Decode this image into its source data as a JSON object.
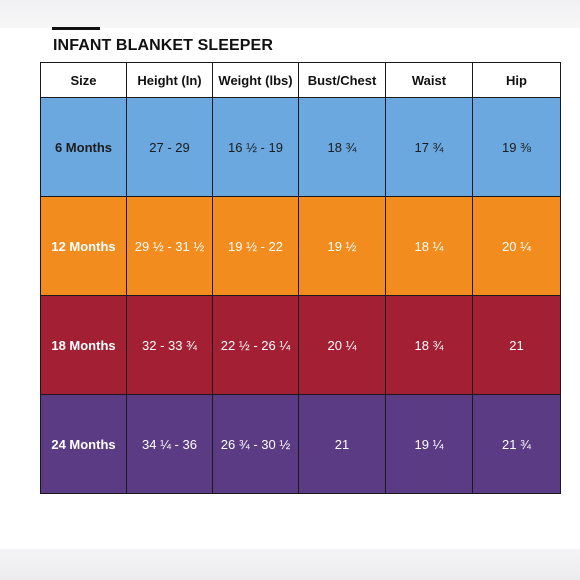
{
  "title": "INFANT BLANKET SLEEPER",
  "headers": [
    "Size",
    "Height (In)",
    "Weight (lbs)",
    "Bust/Chest",
    "Waist",
    "Hip"
  ],
  "rows": [
    {
      "size": "6 Months",
      "height": "27 - 29",
      "weight": "16 ½ - 19",
      "bust": "18 ¾",
      "waist": "17 ¾",
      "hip": "19 ⅜",
      "bg": "#6aa8df",
      "text_color": "#1c1c1c"
    },
    {
      "size": "12 Months",
      "height": "29 ½ - 31 ½",
      "weight": "19 ½ - 22",
      "bust": "19 ½",
      "waist": "18 ¼",
      "hip": "20 ¼",
      "bg": "#f28c1e",
      "text_color": "#ffffff"
    },
    {
      "size": "18 Months",
      "height": "32 - 33 ¾",
      "weight": "22 ½ - 26 ¼",
      "bust": "20 ¼",
      "waist": "18 ¾",
      "hip": "21",
      "bg": "#a31f34",
      "text_color": "#ffffff"
    },
    {
      "size": "24 Months",
      "height": "34 ¼ - 36",
      "weight": "26 ¾ - 30 ½",
      "bust": "21",
      "waist": "19 ¼",
      "hip": "21 ¾",
      "bg": "#5a3b84",
      "text_color": "#ffffff"
    }
  ]
}
